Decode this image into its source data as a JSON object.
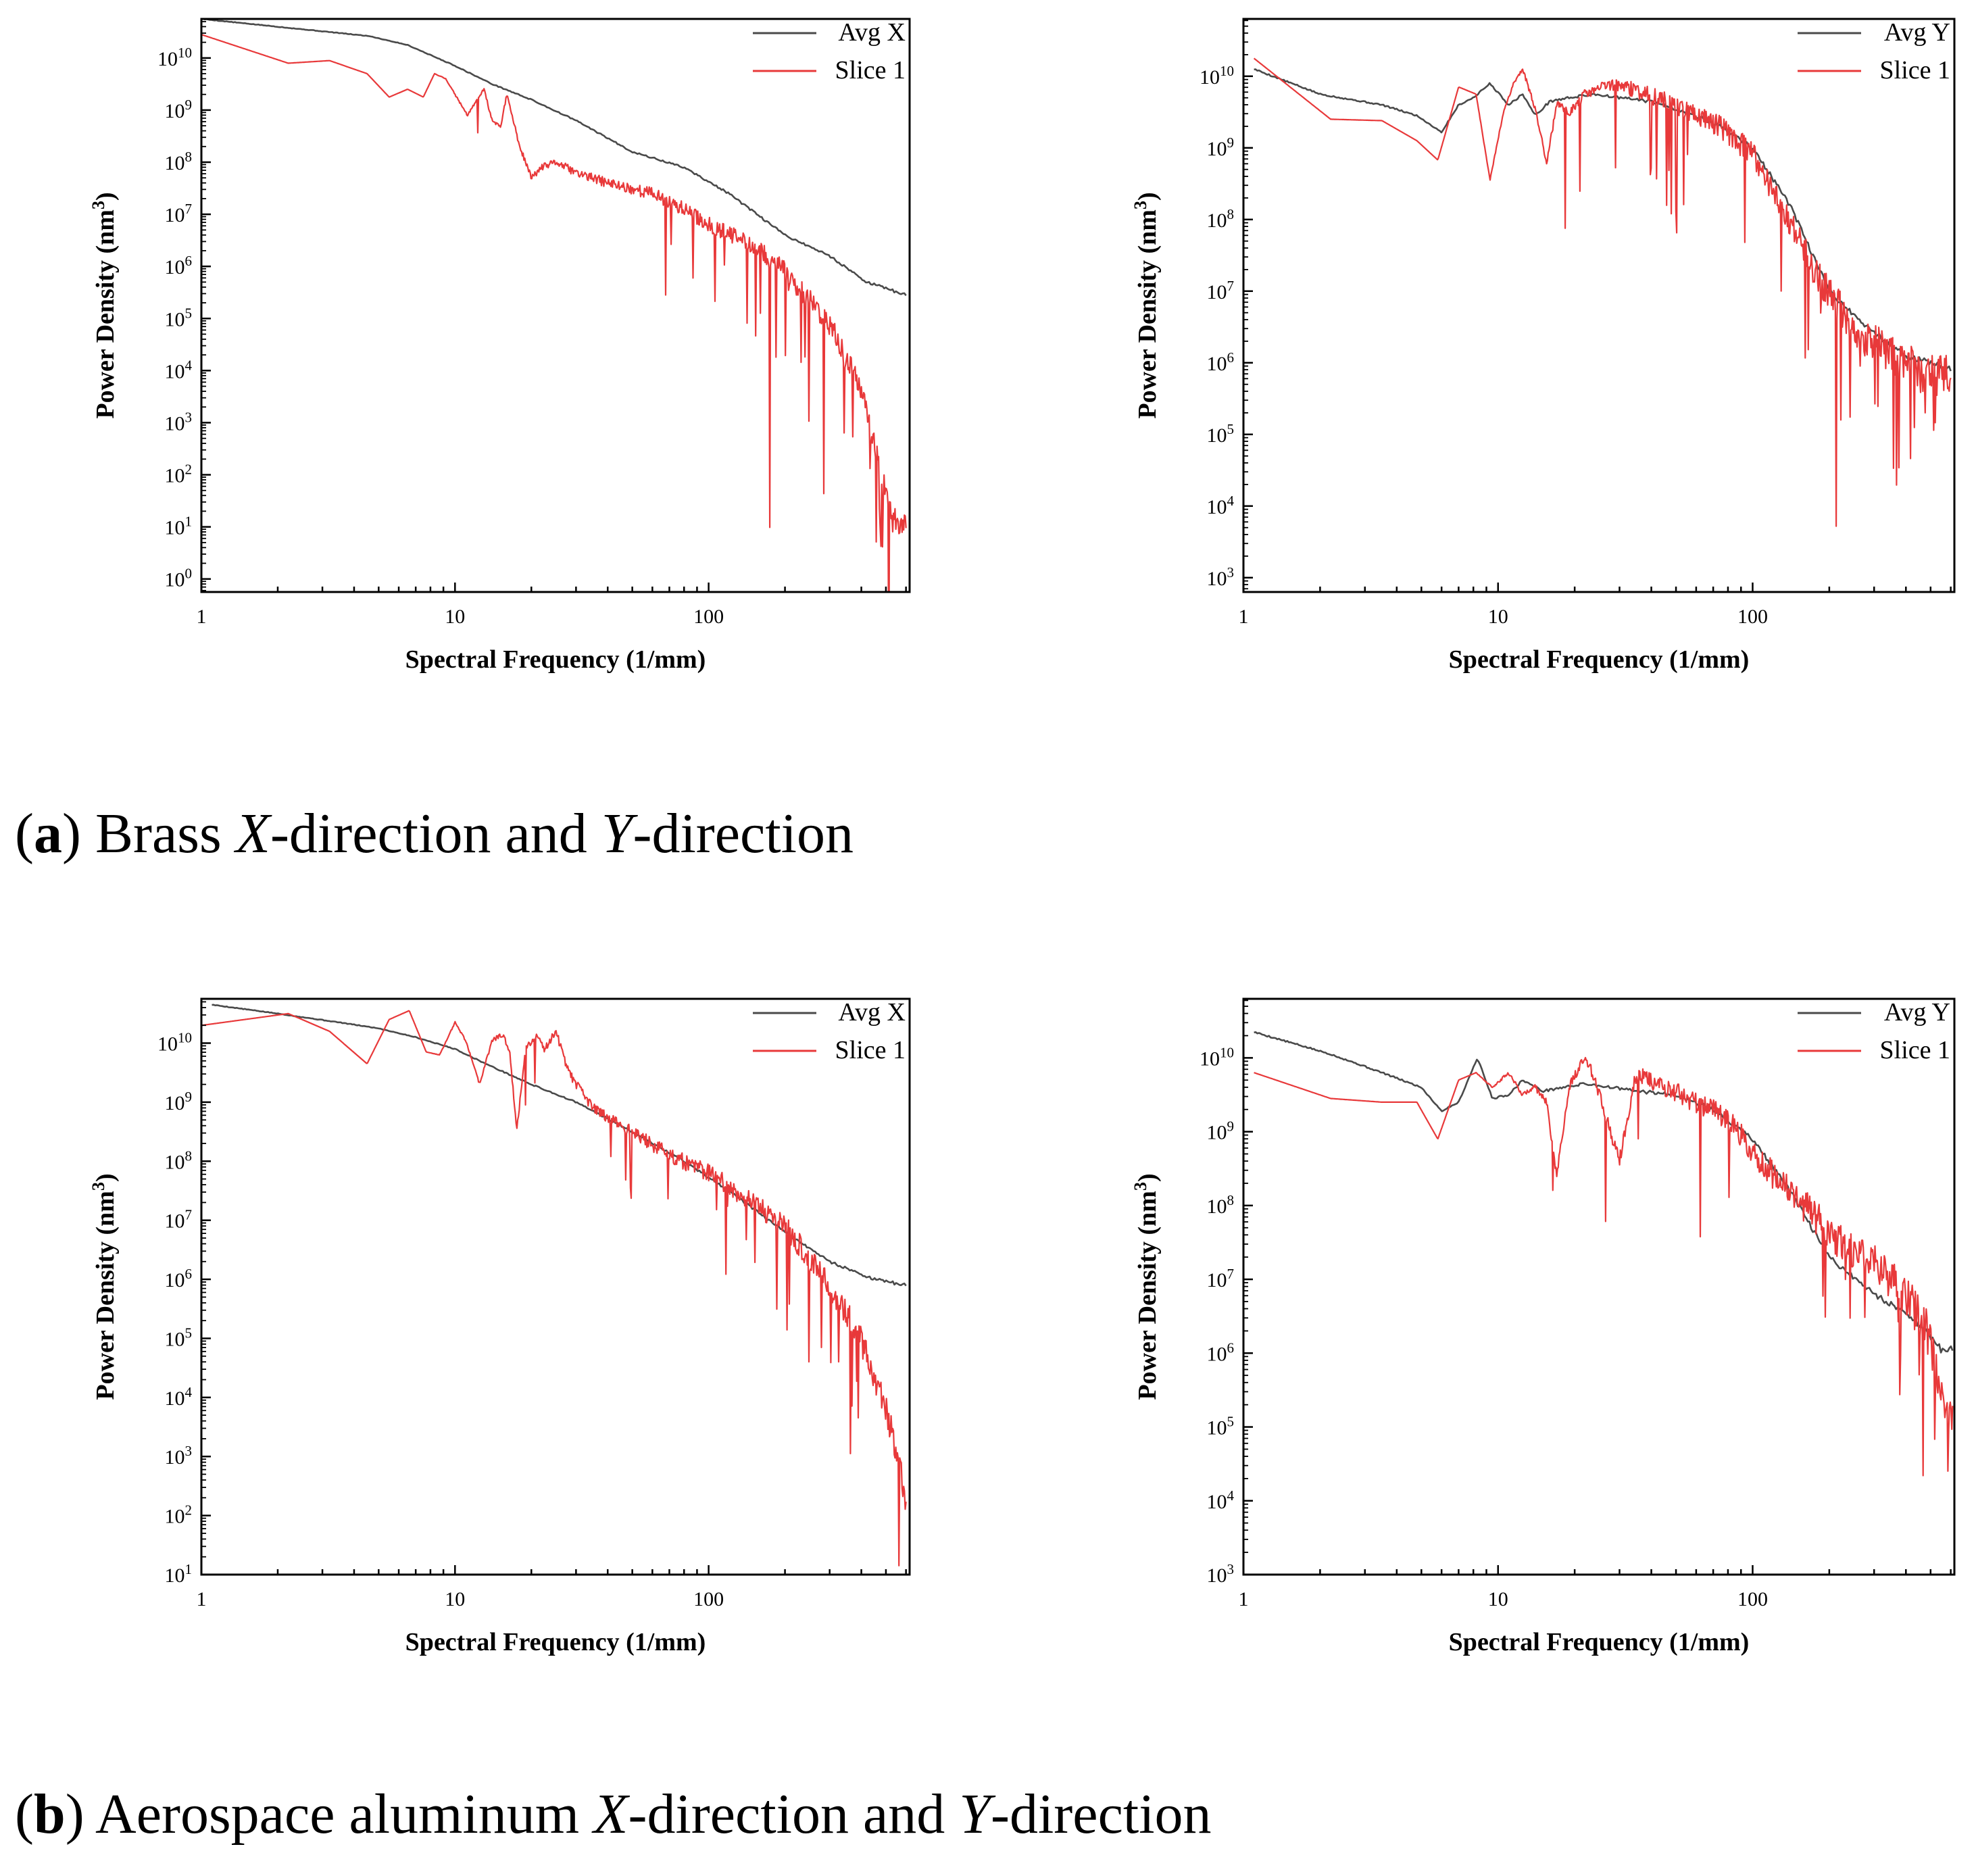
{
  "captions": [
    {
      "label": "a",
      "part1": " Brass ",
      "axis_x": "X",
      "part2": "-direction and ",
      "axis_y": "Y",
      "part3": "-direction"
    },
    {
      "label": "b",
      "part1": " Aerospace aluminum ",
      "axis_x": "X",
      "part2": "-direction and ",
      "axis_y": "Y",
      "part3": "-direction"
    }
  ],
  "colors": {
    "avg": "#4a4a4a",
    "slice": "#e8393a",
    "axis": "#000000"
  },
  "chart_data": [
    {
      "id": "brass-x",
      "type": "line",
      "title": "",
      "xlabel": "Spectral Frequency (1/mm)",
      "ylabel_main": "Power Density (nm",
      "ylabel_sup": "3",
      "ylabel_end": ")",
      "xscale": "log",
      "yscale": "log",
      "xlim": [
        1,
        620
      ],
      "ylim_exp": [
        -0.25,
        10.75
      ],
      "xticks": [
        1,
        10,
        100
      ],
      "xtick_labels": [
        "1",
        "10",
        "100"
      ],
      "yticks_exp": [
        0,
        1,
        2,
        3,
        4,
        5,
        6,
        7,
        8,
        9,
        10
      ],
      "legend_position": "top-right",
      "series": [
        {
          "name": "Avg X",
          "role": "avg",
          "x": [
            1,
            2,
            4.6,
            6.5,
            10,
            14,
            20,
            30,
            50,
            80,
            120,
            200,
            300,
            420,
            600
          ],
          "y_exp": [
            10.75,
            10.6,
            10.42,
            10.25,
            9.85,
            9.5,
            9.2,
            8.8,
            8.2,
            7.9,
            7.4,
            6.6,
            6.2,
            5.7,
            5.45
          ],
          "noise": 0.04,
          "dips": false
        },
        {
          "name": "Slice 1",
          "role": "slice",
          "x": [
            1,
            2.2,
            3.2,
            4.5,
            5.5,
            6.5,
            7.5,
            8.3,
            9.2,
            10,
            11.2,
            13,
            14,
            15.2,
            16,
            18,
            20,
            22,
            25,
            30,
            40,
            60,
            80,
            100,
            150,
            200,
            300,
            400,
            500,
            560,
            600
          ],
          "y_exp": [
            10.45,
            9.9,
            9.95,
            9.7,
            9.25,
            9.4,
            9.25,
            9.7,
            9.6,
            9.3,
            8.9,
            9.4,
            8.8,
            8.7,
            9.3,
            8.3,
            7.7,
            7.9,
            8.0,
            7.8,
            7.6,
            7.4,
            7.1,
            6.8,
            6.4,
            5.9,
            4.9,
            3.6,
            1.6,
            1.0,
            1.0
          ],
          "noise": 0.25,
          "dips": true,
          "seed": 11
        }
      ]
    },
    {
      "id": "brass-y",
      "type": "line",
      "title": "",
      "xlabel": "Spectral Frequency (1/mm)",
      "ylabel_main": "Power Density (nm",
      "ylabel_sup": "3",
      "ylabel_end": ")",
      "xscale": "log",
      "yscale": "log",
      "xlim": [
        1,
        620
      ],
      "ylim_exp": [
        2.8,
        10.8
      ],
      "xticks": [
        1,
        10,
        100
      ],
      "xtick_labels": [
        "1",
        "10",
        "100"
      ],
      "yticks_exp": [
        3,
        4,
        5,
        6,
        7,
        8,
        9,
        10
      ],
      "legend_position": "top-right",
      "series": [
        {
          "name": "Avg Y",
          "role": "avg",
          "x": [
            1.1,
            2,
            3.5,
            4.8,
            6,
            7,
            8,
            9.3,
            11,
            12.5,
            14,
            16,
            19,
            24,
            30,
            40,
            55,
            75,
            100,
            140,
            200,
            280,
            400,
            600
          ],
          "y_exp": [
            10.1,
            9.75,
            9.6,
            9.45,
            9.22,
            9.6,
            9.7,
            9.9,
            9.6,
            9.75,
            9.45,
            9.65,
            9.7,
            9.75,
            9.7,
            9.65,
            9.5,
            9.3,
            9.0,
            8.2,
            7.0,
            6.5,
            6.1,
            5.9
          ],
          "noise": 0.07,
          "dips": false
        },
        {
          "name": "Slice 1",
          "role": "slice",
          "x": [
            1.1,
            2.2,
            3.5,
            4.8,
            5.8,
            7,
            8.2,
            9.3,
            10.5,
            11.5,
            12.5,
            14,
            15.5,
            17,
            19,
            22,
            28,
            35,
            50,
            75,
            100,
            130,
            180,
            250,
            350,
            500,
            600
          ],
          "y_exp": [
            10.25,
            9.4,
            9.38,
            9.1,
            8.83,
            9.85,
            9.75,
            8.55,
            9.5,
            9.9,
            10.1,
            9.55,
            8.8,
            9.6,
            9.5,
            9.75,
            9.9,
            9.8,
            9.6,
            9.3,
            8.9,
            8.2,
            7.2,
            6.5,
            6.1,
            5.8,
            5.9
          ],
          "noise": 0.3,
          "dips": true,
          "seed": 23
        }
      ]
    },
    {
      "id": "aluminum-x",
      "type": "line",
      "title": "",
      "xlabel": "Spectral Frequency (1/mm)",
      "ylabel_main": "Power Density (nm",
      "ylabel_sup": "3",
      "ylabel_end": ")",
      "xscale": "log",
      "yscale": "log",
      "xlim": [
        1,
        620
      ],
      "ylim_exp": [
        1,
        10.75
      ],
      "xticks": [
        1,
        10,
        100
      ],
      "xtick_labels": [
        "1",
        "10",
        "100"
      ],
      "yticks_exp": [
        1,
        2,
        3,
        4,
        5,
        6,
        7,
        8,
        9,
        10
      ],
      "legend_position": "top-right",
      "series": [
        {
          "name": "Avg X",
          "role": "avg",
          "x": [
            1.1,
            2,
            3.5,
            5,
            7,
            10,
            14,
            20,
            30,
            50,
            80,
            120,
            200,
            300,
            450,
            600
          ],
          "y_exp": [
            10.65,
            10.5,
            10.35,
            10.25,
            10.1,
            9.9,
            9.6,
            9.3,
            9.0,
            8.5,
            8.0,
            7.5,
            6.8,
            6.3,
            6.0,
            5.9
          ],
          "noise": 0.04,
          "dips": false
        },
        {
          "name": "Slice 1",
          "role": "slice",
          "x": [
            1,
            2.2,
            3.2,
            4.5,
            5.5,
            6.6,
            7.7,
            8.7,
            10,
            11,
            12.5,
            14,
            15.5,
            16.5,
            17.5,
            19,
            21,
            22.5,
            25,
            28,
            35,
            50,
            70,
            100,
            150,
            200,
            300,
            400,
            500,
            570,
            600
          ],
          "y_exp": [
            10.3,
            10.5,
            10.2,
            9.65,
            10.4,
            10.55,
            9.85,
            9.8,
            10.35,
            10.05,
            9.3,
            10.05,
            10.15,
            9.8,
            8.5,
            9.95,
            10.1,
            9.9,
            10.2,
            9.5,
            8.9,
            8.5,
            8.1,
            7.8,
            7.3,
            6.9,
            5.9,
            5.0,
            3.8,
            2.8,
            2.0
          ],
          "noise": 0.25,
          "dips": true,
          "seed": 37
        }
      ]
    },
    {
      "id": "aluminum-y",
      "type": "line",
      "title": "",
      "xlabel": "Spectral Frequency (1/mm)",
      "ylabel_main": "Power Density (nm",
      "ylabel_sup": "3",
      "ylabel_end": ")",
      "xscale": "log",
      "yscale": "log",
      "xlim": [
        1,
        620
      ],
      "ylim_exp": [
        3,
        10.8
      ],
      "xticks": [
        1,
        10,
        100
      ],
      "xtick_labels": [
        "1",
        "10",
        "100"
      ],
      "yticks_exp": [
        3,
        4,
        5,
        6,
        7,
        8,
        9,
        10
      ],
      "legend_position": "top-right",
      "series": [
        {
          "name": "Avg Y",
          "role": "avg",
          "x": [
            1.1,
            2.2,
            3.5,
            5,
            6,
            7,
            8.3,
            9.5,
            11,
            12.5,
            15,
            18,
            22,
            28,
            35,
            50,
            70,
            100,
            140,
            200,
            300,
            420,
            550,
            610
          ],
          "y_exp": [
            10.35,
            10.05,
            9.8,
            9.6,
            9.28,
            9.4,
            10.0,
            9.45,
            9.5,
            9.7,
            9.55,
            9.6,
            9.65,
            9.6,
            9.55,
            9.5,
            9.3,
            8.9,
            8.2,
            7.3,
            6.8,
            6.5,
            6.05,
            6.05
          ],
          "noise": 0.07,
          "dips": false
        },
        {
          "name": "Slice 1",
          "role": "slice",
          "x": [
            1.1,
            2.2,
            3.5,
            4.8,
            5.8,
            7,
            8.2,
            9.5,
            11,
            12.5,
            14,
            15.5,
            17,
            19,
            22,
            25,
            30,
            35,
            45,
            60,
            80,
            100,
            130,
            170,
            220,
            300,
            400,
            500,
            560,
            610
          ],
          "y_exp": [
            9.8,
            9.45,
            9.4,
            9.4,
            8.9,
            9.7,
            9.8,
            9.6,
            9.8,
            9.5,
            9.6,
            9.4,
            8.4,
            9.6,
            10.05,
            9.5,
            8.6,
            9.8,
            9.6,
            9.4,
            9.2,
            8.7,
            8.3,
            7.9,
            7.5,
            7.2,
            6.8,
            6.2,
            5.2,
            5.0
          ],
          "noise": 0.3,
          "dips": true,
          "seed": 53
        }
      ]
    }
  ]
}
